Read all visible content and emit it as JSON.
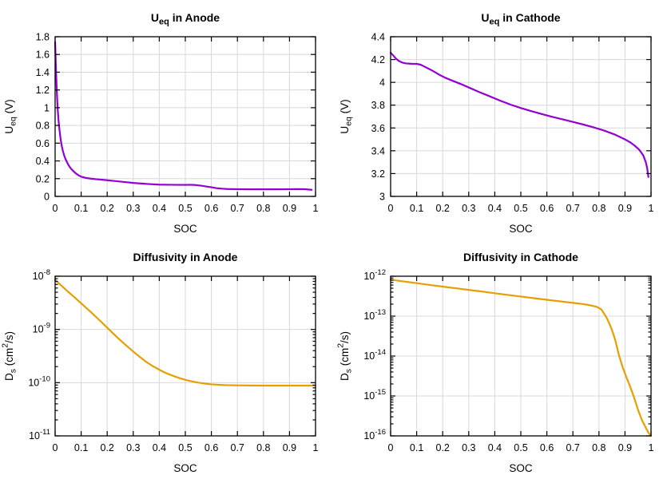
{
  "figure": {
    "background": "#ffffff",
    "grid_color": "#d8d8d8",
    "axis_color": "#000000",
    "text_color": "#000000"
  },
  "chart_data": [
    {
      "id": "ueq-anode",
      "type": "line",
      "title_segments": [
        {
          "t": "U"
        },
        {
          "t": "eq",
          "sub": true
        },
        {
          "t": " in Anode"
        }
      ],
      "xlabel": "SOC",
      "ylabel_segments": [
        {
          "t": "U"
        },
        {
          "t": "eq",
          "sub": true
        },
        {
          "t": " (V)"
        }
      ],
      "x_scale": "linear",
      "y_scale": "linear",
      "xlim": [
        0,
        1
      ],
      "ylim": [
        0,
        1.8
      ],
      "grid": true,
      "legend": "none",
      "x_ticks": {
        "values": [
          0,
          0.1,
          0.2,
          0.3,
          0.4,
          0.5,
          0.6,
          0.7,
          0.8,
          0.9,
          1
        ],
        "labels": [
          "0",
          "0.1",
          "0.2",
          "0.3",
          "0.4",
          "0.5",
          "0.6",
          "0.7",
          "0.8",
          "0.9",
          "1"
        ]
      },
      "y_ticks": {
        "values": [
          0,
          0.2,
          0.4,
          0.6,
          0.8,
          1,
          1.2,
          1.4,
          1.6,
          1.8
        ],
        "labels": [
          "0",
          "0.2",
          "0.4",
          "0.6",
          "0.8",
          "1",
          "1.2",
          "1.4",
          "1.6",
          "1.8"
        ]
      },
      "line_color": "#9400d3",
      "series": [
        {
          "name": "Ueq anode",
          "x": [
            0,
            0.002,
            0.004,
            0.006,
            0.008,
            0.01,
            0.013,
            0.016,
            0.02,
            0.025,
            0.03,
            0.035,
            0.04,
            0.05,
            0.06,
            0.07,
            0.08,
            0.09,
            0.1,
            0.12,
            0.14,
            0.16,
            0.18,
            0.2,
            0.22,
            0.25,
            0.28,
            0.3,
            0.33,
            0.36,
            0.4,
            0.44,
            0.48,
            0.5,
            0.52,
            0.54,
            0.56,
            0.58,
            0.6,
            0.62,
            0.64,
            0.66,
            0.7,
            0.75,
            0.8,
            0.85,
            0.9,
            0.93,
            0.96,
            0.985
          ],
          "y": [
            1.74,
            1.55,
            1.38,
            1.22,
            1.09,
            0.98,
            0.86,
            0.77,
            0.67,
            0.575,
            0.51,
            0.46,
            0.42,
            0.36,
            0.315,
            0.285,
            0.258,
            0.238,
            0.222,
            0.207,
            0.199,
            0.193,
            0.188,
            0.182,
            0.176,
            0.167,
            0.158,
            0.152,
            0.145,
            0.139,
            0.133,
            0.131,
            0.13,
            0.13,
            0.131,
            0.128,
            0.121,
            0.112,
            0.103,
            0.093,
            0.087,
            0.083,
            0.081,
            0.08,
            0.08,
            0.08,
            0.081,
            0.082,
            0.081,
            0.074
          ]
        }
      ]
    },
    {
      "id": "ueq-cathode",
      "type": "line",
      "title_segments": [
        {
          "t": "U"
        },
        {
          "t": "eq",
          "sub": true
        },
        {
          "t": " in Cathode"
        }
      ],
      "xlabel": "SOC",
      "ylabel_segments": [
        {
          "t": "U"
        },
        {
          "t": "eq",
          "sub": true
        },
        {
          "t": " (V)"
        }
      ],
      "x_scale": "linear",
      "y_scale": "linear",
      "xlim": [
        0,
        1
      ],
      "ylim": [
        3,
        4.4
      ],
      "grid": true,
      "legend": "none",
      "x_ticks": {
        "values": [
          0,
          0.1,
          0.2,
          0.3,
          0.4,
          0.5,
          0.6,
          0.7,
          0.8,
          0.9,
          1
        ],
        "labels": [
          "0",
          "0.1",
          "0.2",
          "0.3",
          "0.4",
          "0.5",
          "0.6",
          "0.7",
          "0.8",
          "0.9",
          "1"
        ]
      },
      "y_ticks": {
        "values": [
          3,
          3.2,
          3.4,
          3.6,
          3.8,
          4,
          4.2,
          4.4
        ],
        "labels": [
          "3",
          "3.2",
          "3.4",
          "3.6",
          "3.8",
          "4",
          "4.2",
          "4.4"
        ]
      },
      "line_color": "#9400d3",
      "series": [
        {
          "name": "Ueq cathode",
          "x": [
            0,
            0.01,
            0.02,
            0.03,
            0.04,
            0.05,
            0.06,
            0.08,
            0.1,
            0.115,
            0.13,
            0.15,
            0.17,
            0.19,
            0.21,
            0.24,
            0.27,
            0.3,
            0.34,
            0.38,
            0.42,
            0.46,
            0.5,
            0.54,
            0.58,
            0.62,
            0.66,
            0.7,
            0.74,
            0.78,
            0.82,
            0.86,
            0.9,
            0.92,
            0.94,
            0.955,
            0.97,
            0.98,
            0.985,
            0.99
          ],
          "y": [
            4.26,
            4.235,
            4.21,
            4.19,
            4.178,
            4.17,
            4.166,
            4.163,
            4.162,
            4.155,
            4.138,
            4.115,
            4.09,
            4.063,
            4.04,
            4.012,
            3.985,
            3.955,
            3.915,
            3.878,
            3.84,
            3.805,
            3.775,
            3.748,
            3.722,
            3.698,
            3.676,
            3.653,
            3.63,
            3.605,
            3.577,
            3.543,
            3.5,
            3.474,
            3.44,
            3.408,
            3.36,
            3.3,
            3.25,
            3.17
          ]
        }
      ]
    },
    {
      "id": "ds-anode",
      "type": "line",
      "title_segments": [
        {
          "t": "Diffusivity in Anode"
        }
      ],
      "xlabel": "SOC",
      "ylabel_segments": [
        {
          "t": "D"
        },
        {
          "t": "s",
          "sub": true
        },
        {
          "t": " (cm"
        },
        {
          "t": "2",
          "sup": true
        },
        {
          "t": "/s)"
        }
      ],
      "x_scale": "linear",
      "y_scale": "log",
      "xlim": [
        0,
        1
      ],
      "ylim": [
        1e-11,
        1e-08
      ],
      "grid": true,
      "legend": "none",
      "x_ticks": {
        "values": [
          0,
          0.1,
          0.2,
          0.3,
          0.4,
          0.5,
          0.6,
          0.7,
          0.8,
          0.9,
          1
        ],
        "labels": [
          "0",
          "0.1",
          "0.2",
          "0.3",
          "0.4",
          "0.5",
          "0.6",
          "0.7",
          "0.8",
          "0.9",
          "1"
        ]
      },
      "y_ticks": {
        "exponents": [
          -8,
          -9,
          -10,
          -11
        ],
        "base_label": "10"
      },
      "line_color": "#e69f00",
      "series": [
        {
          "name": "Ds anode",
          "x": [
            0,
            0.025,
            0.05,
            0.075,
            0.1,
            0.125,
            0.15,
            0.175,
            0.2,
            0.225,
            0.25,
            0.275,
            0.3,
            0.325,
            0.35,
            0.375,
            0.4,
            0.425,
            0.45,
            0.475,
            0.5,
            0.525,
            0.55,
            0.575,
            0.6,
            0.65,
            0.7,
            0.75,
            0.8,
            0.85,
            0.9,
            0.95,
            1.0
          ],
          "y": [
            8.5e-09,
            6.6e-09,
            5.1e-09,
            4e-09,
            3.1e-09,
            2.4e-09,
            1.85e-09,
            1.42e-09,
            1.08e-09,
            8.2e-10,
            6.3e-10,
            4.9e-10,
            3.85e-10,
            3.05e-10,
            2.45e-10,
            2.05e-10,
            1.75e-10,
            1.52e-10,
            1.36e-10,
            1.23e-10,
            1.13e-10,
            1.06e-10,
            1e-10,
            9.6e-11,
            9.3e-11,
            9e-11,
            8.9e-11,
            8.85e-11,
            8.8e-11,
            8.8e-11,
            8.8e-11,
            8.8e-11,
            8.8e-11
          ]
        }
      ]
    },
    {
      "id": "ds-cathode",
      "type": "line",
      "title_segments": [
        {
          "t": "Diffusivity in Cathode"
        }
      ],
      "xlabel": "SOC",
      "ylabel_segments": [
        {
          "t": "D"
        },
        {
          "t": "s",
          "sub": true
        },
        {
          "t": " (cm"
        },
        {
          "t": "2",
          "sup": true
        },
        {
          "t": "/s)"
        }
      ],
      "x_scale": "linear",
      "y_scale": "log",
      "xlim": [
        0,
        1
      ],
      "ylim": [
        1e-16,
        1e-12
      ],
      "grid": true,
      "legend": "none",
      "x_ticks": {
        "values": [
          0,
          0.1,
          0.2,
          0.3,
          0.4,
          0.5,
          0.6,
          0.7,
          0.8,
          0.9,
          1
        ],
        "labels": [
          "0",
          "0.1",
          "0.2",
          "0.3",
          "0.4",
          "0.5",
          "0.6",
          "0.7",
          "0.8",
          "0.9",
          "1"
        ]
      },
      "y_ticks": {
        "exponents": [
          -12,
          -13,
          -14,
          -15,
          -16
        ],
        "base_label": "10"
      },
      "line_color": "#e69f00",
      "series": [
        {
          "name": "Ds cathode",
          "x": [
            0,
            0.05,
            0.1,
            0.15,
            0.2,
            0.25,
            0.3,
            0.35,
            0.4,
            0.45,
            0.5,
            0.55,
            0.6,
            0.65,
            0.7,
            0.74,
            0.77,
            0.79,
            0.8,
            0.81,
            0.82,
            0.83,
            0.84,
            0.85,
            0.862,
            0.876,
            0.89,
            0.905,
            0.92,
            0.933,
            0.95,
            0.965,
            0.98,
            0.99,
            1.0
          ],
          "y": [
            8.2e-13,
            7.4e-13,
            6.7e-13,
            6.05e-13,
            5.5e-13,
            5e-13,
            4.55e-13,
            4.15e-13,
            3.75e-13,
            3.4e-13,
            3.1e-13,
            2.82e-13,
            2.57e-13,
            2.35e-13,
            2.15e-13,
            2e-13,
            1.85e-13,
            1.72e-13,
            1.6e-13,
            1.45e-13,
            1.15e-13,
            9e-14,
            6.5e-14,
            4.5e-14,
            2.6e-14,
            1.1e-14,
            5.5e-15,
            3e-15,
            1.7e-15,
            1e-15,
            4.5e-16,
            2.5e-16,
            1.6e-16,
            1.2e-16,
            1e-16
          ]
        }
      ]
    }
  ]
}
